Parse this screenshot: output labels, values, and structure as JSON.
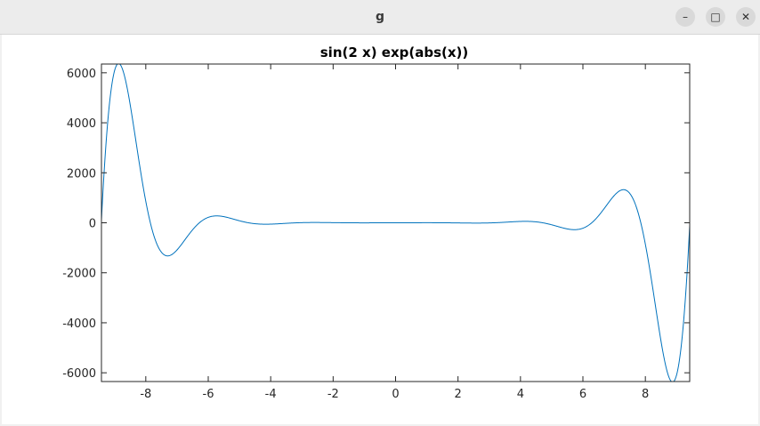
{
  "window": {
    "title": "g",
    "minimize_glyph": "–",
    "maximize_glyph": "□",
    "close_glyph": "✕"
  },
  "chart_data": {
    "type": "line",
    "title": "sin(2 x) exp(abs(x))",
    "xlabel": "",
    "ylabel": "",
    "xlim": [
      -9.42,
      9.42
    ],
    "ylim": [
      -6350,
      6350
    ],
    "xticks": [
      -8,
      -6,
      -4,
      -2,
      0,
      2,
      4,
      6,
      8
    ],
    "yticks": [
      -6000,
      -4000,
      -2000,
      0,
      2000,
      4000,
      6000
    ],
    "xtick_labels": [
      "-8",
      "-6",
      "-4",
      "-2",
      "0",
      "2",
      "4",
      "6",
      "8"
    ],
    "ytick_labels": [
      "-6000",
      "-4000",
      "-2000",
      "0",
      "2000",
      "4000",
      "6000"
    ],
    "grid": false,
    "series": [
      {
        "function": "sin(2*x)*exp(abs(x))",
        "domain": [
          -9.42,
          9.42
        ],
        "color": "#0072bd"
      }
    ]
  }
}
